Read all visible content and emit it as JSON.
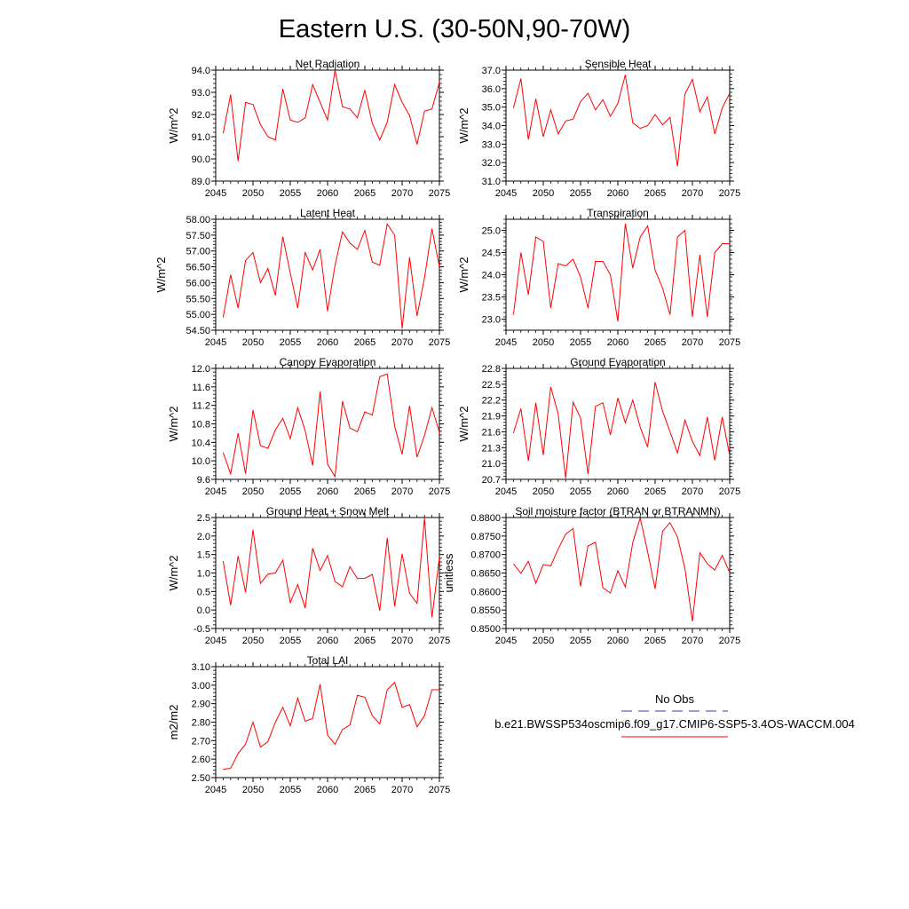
{
  "figure": {
    "title": "Eastern U.S. (30-50N,90-70W)"
  },
  "legend": {
    "entries": [
      {
        "label": "No Obs",
        "color": "#3c3c9a",
        "style": "dashed"
      },
      {
        "label": "b.e21.BWSSP534oscmip6.f09_g17.CMIP6-SSP5-3.4OS-WACCM.004",
        "color": "#ff0000",
        "style": "solid"
      }
    ]
  },
  "chart_data": [
    {
      "type": "line",
      "title": "Net Radiation",
      "ylabel": "W/m^2",
      "xlim": [
        2045,
        2075
      ],
      "ylim": [
        89.0,
        94.0
      ],
      "xticks": [
        2045,
        2050,
        2055,
        2060,
        2065,
        2070,
        2075
      ],
      "yticks": [
        "89.0",
        "90.0",
        "91.0",
        "92.0",
        "93.0",
        "94.0"
      ],
      "x": [
        2046,
        2047,
        2048,
        2049,
        2050,
        2051,
        2052,
        2053,
        2054,
        2055,
        2056,
        2057,
        2058,
        2059,
        2060,
        2061,
        2062,
        2063,
        2064,
        2065,
        2066,
        2067,
        2068,
        2069,
        2070,
        2071,
        2072,
        2073,
        2074,
        2075
      ],
      "series": [
        {
          "color": "#ff0000",
          "values": [
            91.15,
            92.9,
            89.9,
            92.55,
            92.45,
            91.55,
            91.0,
            90.85,
            93.15,
            91.75,
            91.65,
            91.85,
            93.35,
            92.55,
            91.75,
            94.0,
            92.35,
            92.25,
            91.85,
            93.1,
            91.6,
            90.85,
            91.65,
            93.35,
            92.55,
            91.95,
            90.65,
            92.15,
            92.25,
            93.45
          ]
        }
      ]
    },
    {
      "type": "line",
      "title": "Sensible Heat",
      "ylabel": "W/m^2",
      "xlim": [
        2045,
        2075
      ],
      "ylim": [
        31.0,
        37.0
      ],
      "xticks": [
        2045,
        2050,
        2055,
        2060,
        2065,
        2070,
        2075
      ],
      "yticks": [
        "31.0",
        "32.0",
        "33.0",
        "34.0",
        "35.0",
        "36.0",
        "37.0"
      ],
      "x": [
        2046,
        2047,
        2048,
        2049,
        2050,
        2051,
        2052,
        2053,
        2054,
        2055,
        2056,
        2057,
        2058,
        2059,
        2060,
        2061,
        2062,
        2063,
        2064,
        2065,
        2066,
        2067,
        2068,
        2069,
        2070,
        2071,
        2072,
        2073,
        2074,
        2075
      ],
      "series": [
        {
          "color": "#ff0000",
          "values": [
            34.95,
            36.55,
            33.25,
            35.45,
            33.4,
            34.85,
            33.55,
            34.25,
            34.35,
            35.3,
            35.75,
            34.85,
            35.4,
            34.5,
            35.2,
            36.75,
            34.15,
            33.85,
            34.0,
            34.6,
            34.05,
            34.45,
            31.8,
            35.7,
            36.5,
            34.75,
            35.55,
            33.55,
            34.95,
            35.75
          ]
        }
      ]
    },
    {
      "type": "line",
      "title": "Latent Heat",
      "ylabel": "W/m^2",
      "xlim": [
        2045,
        2075
      ],
      "ylim": [
        54.5,
        58.0
      ],
      "xticks": [
        2045,
        2050,
        2055,
        2060,
        2065,
        2070,
        2075
      ],
      "yticks": [
        "54.50",
        "55.00",
        "55.50",
        "56.00",
        "56.50",
        "57.00",
        "57.50",
        "58.00"
      ],
      "x": [
        2046,
        2047,
        2048,
        2049,
        2050,
        2051,
        2052,
        2053,
        2054,
        2055,
        2056,
        2057,
        2058,
        2059,
        2060,
        2061,
        2062,
        2063,
        2064,
        2065,
        2066,
        2067,
        2068,
        2069,
        2070,
        2071,
        2072,
        2073,
        2074,
        2075
      ],
      "series": [
        {
          "color": "#ff0000",
          "values": [
            54.9,
            56.25,
            55.2,
            56.7,
            56.95,
            56.0,
            56.45,
            55.6,
            57.45,
            56.3,
            55.2,
            56.95,
            56.4,
            57.05,
            55.1,
            56.55,
            57.6,
            57.25,
            57.05,
            57.65,
            56.65,
            56.55,
            57.85,
            57.5,
            54.55,
            56.8,
            54.95,
            56.15,
            57.7,
            56.5
          ]
        }
      ]
    },
    {
      "type": "line",
      "title": "Transpiration",
      "ylabel": "W/m^2",
      "xlim": [
        2045,
        2075
      ],
      "ylim": [
        22.75,
        25.25
      ],
      "xticks": [
        2045,
        2050,
        2055,
        2060,
        2065,
        2070,
        2075
      ],
      "yticks": [
        "23.0",
        "23.5",
        "24.0",
        "24.5",
        "25.0"
      ],
      "x": [
        2046,
        2047,
        2048,
        2049,
        2050,
        2051,
        2052,
        2053,
        2054,
        2055,
        2056,
        2057,
        2058,
        2059,
        2060,
        2061,
        2062,
        2063,
        2064,
        2065,
        2066,
        2067,
        2068,
        2069,
        2070,
        2071,
        2072,
        2073,
        2074,
        2075
      ],
      "series": [
        {
          "color": "#ff0000",
          "values": [
            23.1,
            24.5,
            23.55,
            24.85,
            24.75,
            23.25,
            24.25,
            24.2,
            24.35,
            23.95,
            23.25,
            24.3,
            24.3,
            24.0,
            22.95,
            25.15,
            24.15,
            24.85,
            25.1,
            24.1,
            23.7,
            23.1,
            24.85,
            25.0,
            23.05,
            24.45,
            23.05,
            24.5,
            24.7,
            24.7
          ]
        }
      ]
    },
    {
      "type": "line",
      "title": "Canopy Evaporation",
      "ylabel": "W/m^2",
      "xlim": [
        2045,
        2075
      ],
      "ylim": [
        9.6,
        12.0
      ],
      "xticks": [
        2045,
        2050,
        2055,
        2060,
        2065,
        2070,
        2075
      ],
      "yticks": [
        "9.6",
        "10.0",
        "10.4",
        "10.8",
        "11.2",
        "11.6",
        "12.0"
      ],
      "x": [
        2046,
        2047,
        2048,
        2049,
        2050,
        2051,
        2052,
        2053,
        2054,
        2055,
        2056,
        2057,
        2058,
        2059,
        2060,
        2061,
        2062,
        2063,
        2064,
        2065,
        2066,
        2067,
        2068,
        2069,
        2070,
        2071,
        2072,
        2073,
        2074,
        2075
      ],
      "series": [
        {
          "color": "#ff0000",
          "values": [
            10.18,
            9.72,
            10.6,
            9.72,
            11.1,
            10.33,
            10.27,
            10.67,
            10.92,
            10.48,
            11.15,
            10.65,
            9.9,
            11.5,
            9.93,
            9.66,
            11.29,
            10.71,
            10.63,
            11.06,
            10.99,
            11.82,
            11.88,
            10.75,
            10.14,
            11.19,
            10.08,
            10.55,
            11.15,
            10.62
          ]
        }
      ]
    },
    {
      "type": "line",
      "title": "Ground Evaporation",
      "ylabel": "W/m^2",
      "xlim": [
        2045,
        2075
      ],
      "ylim": [
        20.7,
        22.8
      ],
      "xticks": [
        2045,
        2050,
        2055,
        2060,
        2065,
        2070,
        2075
      ],
      "yticks": [
        "20.7",
        "21.0",
        "21.3",
        "21.6",
        "21.9",
        "22.2",
        "22.5",
        "22.8"
      ],
      "x": [
        2046,
        2047,
        2048,
        2049,
        2050,
        2051,
        2052,
        2053,
        2054,
        2055,
        2056,
        2057,
        2058,
        2059,
        2060,
        2061,
        2062,
        2063,
        2064,
        2065,
        2066,
        2067,
        2068,
        2069,
        2070,
        2071,
        2072,
        2073,
        2074,
        2075
      ],
      "series": [
        {
          "color": "#ff0000",
          "values": [
            21.58,
            22.04,
            21.05,
            22.15,
            21.16,
            22.45,
            21.94,
            20.72,
            22.16,
            21.86,
            20.8,
            22.08,
            22.15,
            21.54,
            22.24,
            21.77,
            22.2,
            21.69,
            21.31,
            22.54,
            21.99,
            21.6,
            21.2,
            21.82,
            21.42,
            21.15,
            21.88,
            21.06,
            21.88,
            21.15
          ]
        }
      ]
    },
    {
      "type": "line",
      "title": "Ground Heat + Snow Melt",
      "ylabel": "W/m^2",
      "xlim": [
        2045,
        2075
      ],
      "ylim": [
        -0.5,
        2.5
      ],
      "xticks": [
        2045,
        2050,
        2055,
        2060,
        2065,
        2070,
        2075
      ],
      "yticks": [
        "-0.5",
        "0.0",
        "0.5",
        "1.0",
        "1.5",
        "2.0",
        "2.5"
      ],
      "x": [
        2046,
        2047,
        2048,
        2049,
        2050,
        2051,
        2052,
        2053,
        2054,
        2055,
        2056,
        2057,
        2058,
        2059,
        2060,
        2061,
        2062,
        2063,
        2064,
        2065,
        2066,
        2067,
        2068,
        2069,
        2070,
        2071,
        2072,
        2073,
        2074,
        2075
      ],
      "series": [
        {
          "color": "#ff0000",
          "values": [
            1.32,
            0.13,
            1.46,
            0.48,
            2.17,
            0.72,
            0.97,
            1.0,
            1.35,
            0.2,
            0.69,
            0.05,
            1.67,
            1.07,
            1.47,
            0.77,
            0.63,
            1.17,
            0.85,
            0.86,
            0.96,
            -0.02,
            1.95,
            0.1,
            1.52,
            0.45,
            0.18,
            2.48,
            -0.2,
            1.42
          ]
        }
      ]
    },
    {
      "type": "line",
      "title": "Soil moisture factor (BTRAN or BTRANMN)",
      "ylabel": "unitless",
      "xlim": [
        2045,
        2075
      ],
      "ylim": [
        0.85,
        0.88
      ],
      "xticks": [
        2045,
        2050,
        2055,
        2060,
        2065,
        2070,
        2075
      ],
      "yticks": [
        "0.8500",
        "0.8550",
        "0.8600",
        "0.8650",
        "0.8700",
        "0.8750",
        "0.8800"
      ],
      "x": [
        2046,
        2047,
        2048,
        2049,
        2050,
        2051,
        2052,
        2053,
        2054,
        2055,
        2056,
        2057,
        2058,
        2059,
        2060,
        2061,
        2062,
        2063,
        2064,
        2065,
        2066,
        2067,
        2068,
        2069,
        2070,
        2071,
        2072,
        2073,
        2074,
        2075
      ],
      "series": [
        {
          "color": "#ff0000",
          "values": [
            0.8675,
            0.8649,
            0.8682,
            0.8622,
            0.8673,
            0.8669,
            0.8715,
            0.8755,
            0.877,
            0.8614,
            0.8723,
            0.8733,
            0.861,
            0.8596,
            0.8656,
            0.8612,
            0.8732,
            0.8799,
            0.8707,
            0.8607,
            0.8763,
            0.8786,
            0.8747,
            0.8662,
            0.8519,
            0.8705,
            0.8675,
            0.8658,
            0.8698,
            0.8651
          ]
        }
      ]
    },
    {
      "type": "line",
      "title": "Total LAI",
      "ylabel": "m2/m2",
      "xlim": [
        2045,
        2075
      ],
      "ylim": [
        2.5,
        3.1
      ],
      "xticks": [
        2045,
        2050,
        2055,
        2060,
        2065,
        2070,
        2075
      ],
      "yticks": [
        "2.50",
        "2.60",
        "2.70",
        "2.80",
        "2.90",
        "3.00",
        "3.10"
      ],
      "x": [
        2046,
        2047,
        2048,
        2049,
        2050,
        2051,
        2052,
        2053,
        2054,
        2055,
        2056,
        2057,
        2058,
        2059,
        2060,
        2061,
        2062,
        2063,
        2064,
        2065,
        2066,
        2067,
        2068,
        2069,
        2070,
        2071,
        2072,
        2073,
        2074,
        2075
      ],
      "series": [
        {
          "color": "#ff0000",
          "values": [
            2.545,
            2.55,
            2.63,
            2.68,
            2.8,
            2.665,
            2.695,
            2.8,
            2.88,
            2.78,
            2.93,
            2.805,
            2.82,
            3.005,
            2.73,
            2.68,
            2.76,
            2.785,
            2.945,
            2.935,
            2.835,
            2.79,
            2.975,
            3.015,
            2.88,
            2.895,
            2.775,
            2.835,
            2.975,
            2.975
          ]
        }
      ]
    }
  ]
}
